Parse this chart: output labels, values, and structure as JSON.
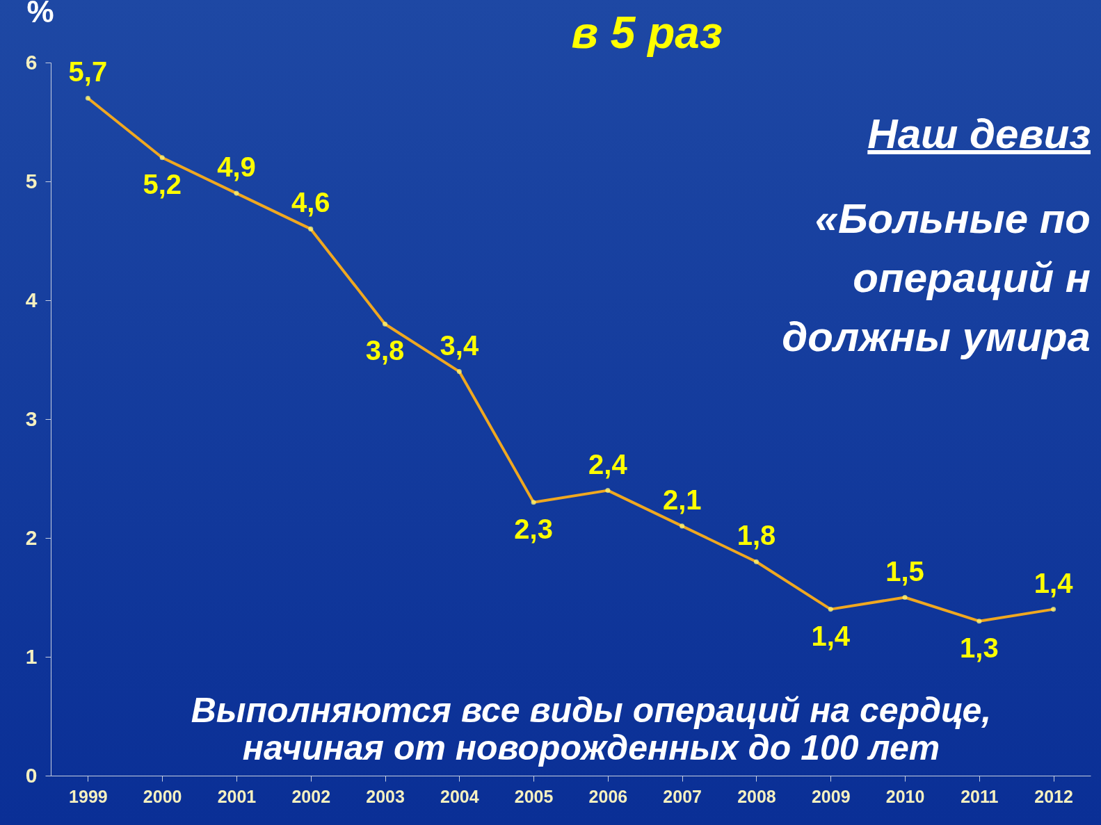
{
  "chart_data": {
    "type": "line",
    "title": "в 5 раз",
    "ylabel": "%",
    "categories": [
      "1999",
      "2000",
      "2001",
      "2002",
      "2003",
      "2004",
      "2005",
      "2006",
      "2007",
      "2008",
      "2009",
      "2010",
      "2011",
      "2012"
    ],
    "series": [
      {
        "color": "#f0a820",
        "values": [
          5.7,
          5.2,
          4.9,
          4.6,
          3.8,
          3.4,
          2.3,
          2.4,
          2.1,
          1.8,
          1.4,
          1.5,
          1.3,
          1.4
        ],
        "value_labels": [
          "5,7",
          "5,2",
          "4,9",
          "4,6",
          "3,8",
          "3,4",
          "2,3",
          "2,4",
          "2,1",
          "1,8",
          "1,4",
          "1,5",
          "1,3",
          "1,4"
        ]
      }
    ],
    "ylim": [
      0,
      6
    ],
    "yticks": [
      {
        "value": 0,
        "label": "0"
      },
      {
        "value": 1,
        "label": "1"
      },
      {
        "value": 2,
        "label": "2"
      },
      {
        "value": 3,
        "label": "3"
      },
      {
        "value": 4,
        "label": "4"
      },
      {
        "value": 5,
        "label": "5"
      },
      {
        "value": 6,
        "label": "6"
      }
    ],
    "grid": false,
    "marker": "circle",
    "line_style": "solid",
    "annotations": [
      "Наш девиз",
      "«Больные по",
      "операций н",
      "должны умира",
      "Выполняются все виды операций на сердце,\nначиная от новорожденных до 100 лет"
    ]
  }
}
